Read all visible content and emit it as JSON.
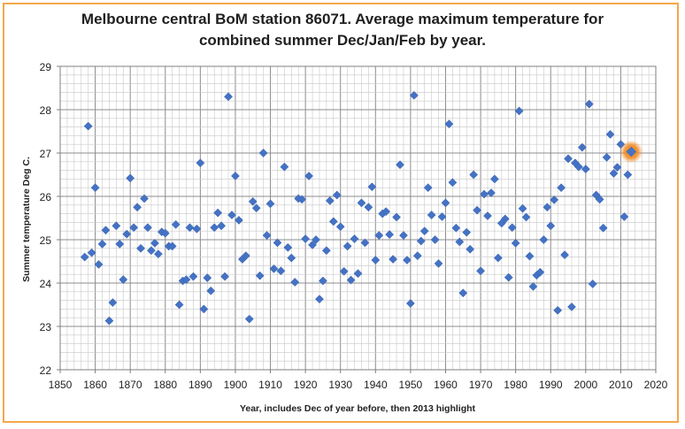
{
  "chart_data": {
    "type": "scatter",
    "title_line1": "Melbourne central BoM station 86071. Average maximum temperature for",
    "title_line2": "combined summer Dec/Jan/Feb by year.",
    "xlabel": "Year, includes  Dec of year before, then 2013 highlight",
    "ylabel": "Summer temperature Deg C.",
    "xlim": [
      1850,
      2020
    ],
    "ylim": [
      22,
      29
    ],
    "xticks": [
      "1850",
      "1860",
      "1870",
      "1880",
      "1890",
      "1900",
      "1910",
      "1920",
      "1930",
      "1940",
      "1950",
      "1960",
      "1970",
      "1980",
      "1990",
      "2000",
      "2010",
      "2020"
    ],
    "yticks": [
      "22",
      "23",
      "24",
      "25",
      "26",
      "27",
      "28",
      "29"
    ],
    "grid": true,
    "marker_color": "#4472c4",
    "highlight_color": "#f08a24",
    "highlight": {
      "x": 2013,
      "y": 27.03
    },
    "points": [
      {
        "x": 1857,
        "y": 24.6
      },
      {
        "x": 1858,
        "y": 27.62
      },
      {
        "x": 1859,
        "y": 24.7
      },
      {
        "x": 1860,
        "y": 26.2
      },
      {
        "x": 1861,
        "y": 24.43
      },
      {
        "x": 1862,
        "y": 24.9
      },
      {
        "x": 1863,
        "y": 25.22
      },
      {
        "x": 1864,
        "y": 23.13
      },
      {
        "x": 1865,
        "y": 23.55
      },
      {
        "x": 1866,
        "y": 25.32
      },
      {
        "x": 1867,
        "y": 24.9
      },
      {
        "x": 1868,
        "y": 24.08
      },
      {
        "x": 1869,
        "y": 25.13
      },
      {
        "x": 1870,
        "y": 26.42
      },
      {
        "x": 1871,
        "y": 25.28
      },
      {
        "x": 1872,
        "y": 25.75
      },
      {
        "x": 1873,
        "y": 24.8
      },
      {
        "x": 1874,
        "y": 25.95
      },
      {
        "x": 1875,
        "y": 25.28
      },
      {
        "x": 1876,
        "y": 24.75
      },
      {
        "x": 1877,
        "y": 24.92
      },
      {
        "x": 1878,
        "y": 24.67
      },
      {
        "x": 1879,
        "y": 25.18
      },
      {
        "x": 1880,
        "y": 25.15
      },
      {
        "x": 1881,
        "y": 24.85
      },
      {
        "x": 1882,
        "y": 24.85
      },
      {
        "x": 1883,
        "y": 25.35
      },
      {
        "x": 1884,
        "y": 23.5
      },
      {
        "x": 1885,
        "y": 24.05
      },
      {
        "x": 1886,
        "y": 24.08
      },
      {
        "x": 1887,
        "y": 25.28
      },
      {
        "x": 1888,
        "y": 24.15
      },
      {
        "x": 1889,
        "y": 25.25
      },
      {
        "x": 1890,
        "y": 26.77
      },
      {
        "x": 1891,
        "y": 23.4
      },
      {
        "x": 1892,
        "y": 24.12
      },
      {
        "x": 1893,
        "y": 23.82
      },
      {
        "x": 1894,
        "y": 25.28
      },
      {
        "x": 1895,
        "y": 25.62
      },
      {
        "x": 1896,
        "y": 25.32
      },
      {
        "x": 1897,
        "y": 24.15
      },
      {
        "x": 1898,
        "y": 28.3
      },
      {
        "x": 1899,
        "y": 25.57
      },
      {
        "x": 1900,
        "y": 26.47
      },
      {
        "x": 1901,
        "y": 25.45
      },
      {
        "x": 1902,
        "y": 24.55
      },
      {
        "x": 1903,
        "y": 24.63
      },
      {
        "x": 1904,
        "y": 23.17
      },
      {
        "x": 1905,
        "y": 25.88
      },
      {
        "x": 1906,
        "y": 25.73
      },
      {
        "x": 1907,
        "y": 24.17
      },
      {
        "x": 1908,
        "y": 27.0
      },
      {
        "x": 1909,
        "y": 25.1
      },
      {
        "x": 1910,
        "y": 25.83
      },
      {
        "x": 1911,
        "y": 24.33
      },
      {
        "x": 1912,
        "y": 24.93
      },
      {
        "x": 1913,
        "y": 24.28
      },
      {
        "x": 1914,
        "y": 26.68
      },
      {
        "x": 1915,
        "y": 24.82
      },
      {
        "x": 1916,
        "y": 24.58
      },
      {
        "x": 1917,
        "y": 24.02
      },
      {
        "x": 1918,
        "y": 25.95
      },
      {
        "x": 1919,
        "y": 25.93
      },
      {
        "x": 1920,
        "y": 25.02
      },
      {
        "x": 1921,
        "y": 26.47
      },
      {
        "x": 1922,
        "y": 24.88
      },
      {
        "x": 1923,
        "y": 25.0
      },
      {
        "x": 1924,
        "y": 23.63
      },
      {
        "x": 1925,
        "y": 24.05
      },
      {
        "x": 1926,
        "y": 24.75
      },
      {
        "x": 1927,
        "y": 25.9
      },
      {
        "x": 1928,
        "y": 25.42
      },
      {
        "x": 1929,
        "y": 26.03
      },
      {
        "x": 1930,
        "y": 25.3
      },
      {
        "x": 1931,
        "y": 24.27
      },
      {
        "x": 1932,
        "y": 24.85
      },
      {
        "x": 1933,
        "y": 24.07
      },
      {
        "x": 1934,
        "y": 25.02
      },
      {
        "x": 1935,
        "y": 24.22
      },
      {
        "x": 1936,
        "y": 25.85
      },
      {
        "x": 1937,
        "y": 24.93
      },
      {
        "x": 1938,
        "y": 25.75
      },
      {
        "x": 1939,
        "y": 26.22
      },
      {
        "x": 1940,
        "y": 24.53
      },
      {
        "x": 1941,
        "y": 25.1
      },
      {
        "x": 1942,
        "y": 25.6
      },
      {
        "x": 1943,
        "y": 25.65
      },
      {
        "x": 1944,
        "y": 25.12
      },
      {
        "x": 1945,
        "y": 24.55
      },
      {
        "x": 1946,
        "y": 25.52
      },
      {
        "x": 1947,
        "y": 26.73
      },
      {
        "x": 1948,
        "y": 25.1
      },
      {
        "x": 1949,
        "y": 24.53
      },
      {
        "x": 1950,
        "y": 23.53
      },
      {
        "x": 1951,
        "y": 28.33
      },
      {
        "x": 1952,
        "y": 24.63
      },
      {
        "x": 1953,
        "y": 24.97
      },
      {
        "x": 1954,
        "y": 25.2
      },
      {
        "x": 1955,
        "y": 26.2
      },
      {
        "x": 1956,
        "y": 25.57
      },
      {
        "x": 1957,
        "y": 25.0
      },
      {
        "x": 1958,
        "y": 24.45
      },
      {
        "x": 1959,
        "y": 25.53
      },
      {
        "x": 1960,
        "y": 25.85
      },
      {
        "x": 1961,
        "y": 27.67
      },
      {
        "x": 1962,
        "y": 26.32
      },
      {
        "x": 1963,
        "y": 25.27
      },
      {
        "x": 1964,
        "y": 24.95
      },
      {
        "x": 1965,
        "y": 23.77
      },
      {
        "x": 1966,
        "y": 25.17
      },
      {
        "x": 1967,
        "y": 24.78
      },
      {
        "x": 1968,
        "y": 26.5
      },
      {
        "x": 1969,
        "y": 25.68
      },
      {
        "x": 1970,
        "y": 24.28
      },
      {
        "x": 1971,
        "y": 26.05
      },
      {
        "x": 1972,
        "y": 25.55
      },
      {
        "x": 1973,
        "y": 26.08
      },
      {
        "x": 1974,
        "y": 26.4
      },
      {
        "x": 1975,
        "y": 24.58
      },
      {
        "x": 1976,
        "y": 25.38
      },
      {
        "x": 1977,
        "y": 25.48
      },
      {
        "x": 1978,
        "y": 24.13
      },
      {
        "x": 1979,
        "y": 25.28
      },
      {
        "x": 1980,
        "y": 24.92
      },
      {
        "x": 1981,
        "y": 27.97
      },
      {
        "x": 1982,
        "y": 25.72
      },
      {
        "x": 1983,
        "y": 25.52
      },
      {
        "x": 1984,
        "y": 24.62
      },
      {
        "x": 1985,
        "y": 23.92
      },
      {
        "x": 1986,
        "y": 24.18
      },
      {
        "x": 1987,
        "y": 24.25
      },
      {
        "x": 1988,
        "y": 25.0
      },
      {
        "x": 1989,
        "y": 25.75
      },
      {
        "x": 1990,
        "y": 25.32
      },
      {
        "x": 1991,
        "y": 25.92
      },
      {
        "x": 1992,
        "y": 23.37
      },
      {
        "x": 1993,
        "y": 26.2
      },
      {
        "x": 1994,
        "y": 24.65
      },
      {
        "x": 1995,
        "y": 26.87
      },
      {
        "x": 1996,
        "y": 23.45
      },
      {
        "x": 1997,
        "y": 26.77
      },
      {
        "x": 1998,
        "y": 26.68
      },
      {
        "x": 1999,
        "y": 27.13
      },
      {
        "x": 2000,
        "y": 26.63
      },
      {
        "x": 2001,
        "y": 28.13
      },
      {
        "x": 2002,
        "y": 23.98
      },
      {
        "x": 2003,
        "y": 26.03
      },
      {
        "x": 2004,
        "y": 25.93
      },
      {
        "x": 2005,
        "y": 25.27
      },
      {
        "x": 2006,
        "y": 26.9
      },
      {
        "x": 2007,
        "y": 27.43
      },
      {
        "x": 2008,
        "y": 26.53
      },
      {
        "x": 2009,
        "y": 26.67
      },
      {
        "x": 2010,
        "y": 27.2
      },
      {
        "x": 2011,
        "y": 25.53
      },
      {
        "x": 2012,
        "y": 26.5
      }
    ]
  }
}
